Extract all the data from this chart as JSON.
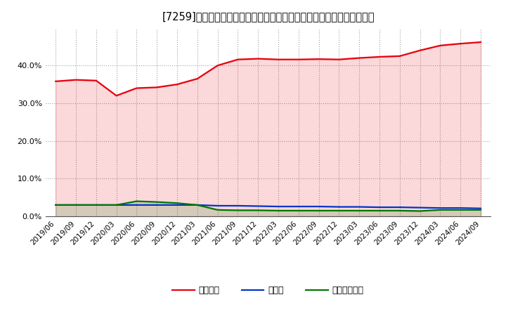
{
  "title": "[7259]　自己資本、のれん、繰延税金資産の総資産に対する比率の推移",
  "x_labels": [
    "2019/06",
    "2019/09",
    "2019/12",
    "2020/03",
    "2020/06",
    "2020/09",
    "2020/12",
    "2021/03",
    "2021/06",
    "2021/09",
    "2021/12",
    "2022/03",
    "2022/06",
    "2022/09",
    "2022/12",
    "2023/03",
    "2023/06",
    "2023/09",
    "2023/12",
    "2024/03",
    "2024/06",
    "2024/09"
  ],
  "equity": [
    0.358,
    0.362,
    0.36,
    0.32,
    0.34,
    0.342,
    0.35,
    0.365,
    0.4,
    0.416,
    0.418,
    0.416,
    0.416,
    0.417,
    0.416,
    0.42,
    0.423,
    0.425,
    0.44,
    0.453,
    0.458,
    0.462
  ],
  "goodwill": [
    0.03,
    0.03,
    0.03,
    0.03,
    0.03,
    0.03,
    0.03,
    0.03,
    0.028,
    0.028,
    0.027,
    0.026,
    0.026,
    0.026,
    0.025,
    0.025,
    0.024,
    0.024,
    0.023,
    0.022,
    0.022,
    0.021
  ],
  "deferred_tax": [
    0.03,
    0.03,
    0.03,
    0.03,
    0.04,
    0.038,
    0.035,
    0.03,
    0.017,
    0.016,
    0.016,
    0.015,
    0.015,
    0.015,
    0.015,
    0.015,
    0.015,
    0.015,
    0.014,
    0.017,
    0.017,
    0.017
  ],
  "equity_color": "#e8000d",
  "goodwill_color": "#0033cc",
  "deferred_tax_color": "#007700",
  "bg_color": "#ffffff",
  "plot_bg_color": "#ffffff",
  "grid_color": "#999999",
  "ylim": [
    0.0,
    0.5
  ],
  "yticks": [
    0.0,
    0.1,
    0.2,
    0.3,
    0.4
  ],
  "legend_labels": [
    "自己資本",
    "のれん",
    "繰延税金資産"
  ]
}
